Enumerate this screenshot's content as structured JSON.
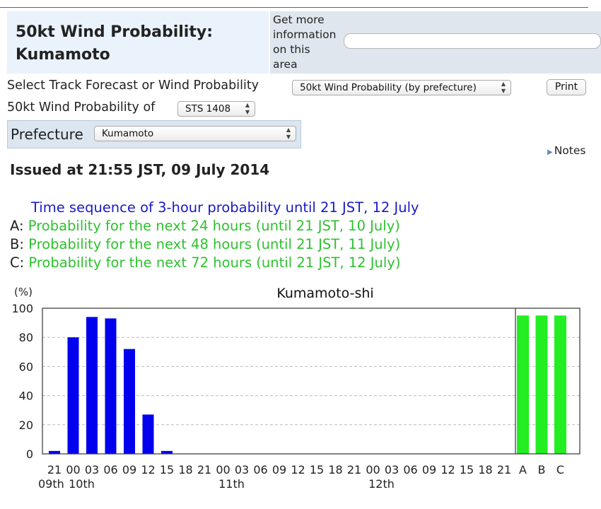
{
  "header": {
    "title_line1": "50kt Wind Probability:",
    "title_line2": "Kumamoto",
    "info_line1": "Get more",
    "info_line2": "information",
    "info_line3": "on this",
    "info_line4": "area"
  },
  "controls": {
    "track_label": "Select Track Forecast or Wind Probability",
    "track_selected": "50kt Wind Probability (by prefecture)",
    "print_label": "Print",
    "storm_label": "50kt Wind Probability of",
    "storm_selected": "STS 1408",
    "prefecture_label": "Prefecture",
    "prefecture_selected": "Kumamoto",
    "notes_label": "Notes"
  },
  "issued": "Issued at 21:55 JST, 09 July 2014",
  "legend": {
    "sequence": "Time sequence of 3-hour probability until 21 JST, 12 July",
    "a_key": "A:",
    "a_text": "Probability for the next 24 hours (until 21 JST, 10 July)",
    "b_key": "B:",
    "b_text": "Probability for the next 48 hours (until 21 JST, 11 July)",
    "c_key": "C:",
    "c_text": "Probability for the next 72 hours (until 21 JST, 12 July)"
  },
  "colors": {
    "sequence_bar": "#0000ee",
    "cumulative_bar": "#22ee22",
    "sequence_text": "#1a1ac8",
    "cumulative_text": "#2ec12e"
  },
  "chart_data": {
    "type": "bar",
    "title": "Kumamoto-shi",
    "ylabel": "(%)",
    "ylim": [
      0,
      100
    ],
    "yticks": [
      0,
      20,
      40,
      60,
      80,
      100
    ],
    "grid": true,
    "categories": [
      "21",
      "00",
      "03",
      "06",
      "09",
      "12",
      "15",
      "18",
      "21",
      "00",
      "03",
      "06",
      "09",
      "12",
      "15",
      "18",
      "21",
      "00",
      "03",
      "06",
      "09",
      "12",
      "15",
      "18",
      "21",
      "A",
      "B",
      "C"
    ],
    "day_labels": [
      {
        "label": "09th",
        "at_index": 0
      },
      {
        "label": "10th",
        "at_index": 1
      },
      {
        "label": "11th",
        "at_index": 9
      },
      {
        "label": "12th",
        "at_index": 17
      }
    ],
    "series": [
      {
        "values": [
          2,
          80,
          94,
          93,
          72,
          27,
          2,
          0,
          0,
          0,
          0,
          0,
          0,
          0,
          0,
          0,
          0,
          0,
          0,
          0,
          0,
          0,
          0,
          0,
          null,
          null,
          null,
          null
        ]
      },
      {
        "values": [
          null,
          null,
          null,
          null,
          null,
          null,
          null,
          null,
          null,
          null,
          null,
          null,
          null,
          null,
          null,
          null,
          null,
          null,
          null,
          null,
          null,
          null,
          null,
          null,
          null,
          95,
          95,
          95
        ]
      }
    ]
  }
}
